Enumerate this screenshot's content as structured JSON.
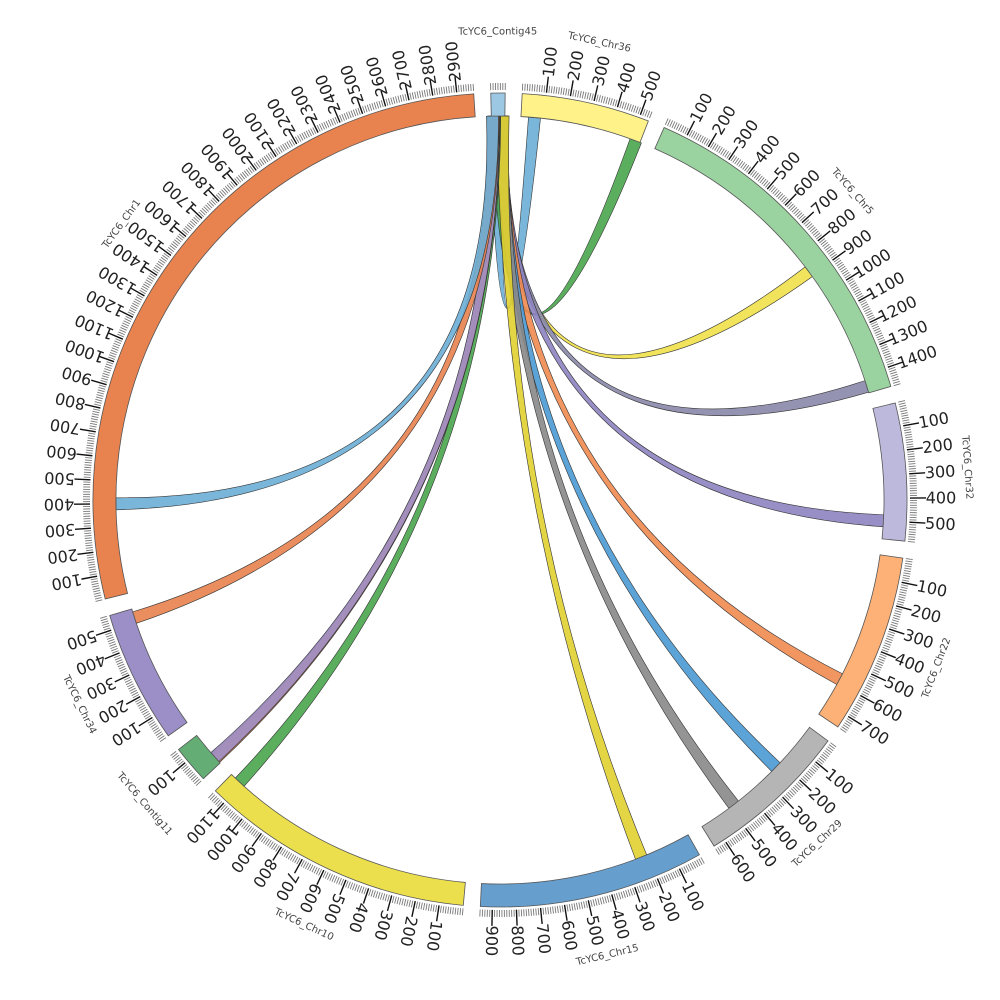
{
  "chart_data": {
    "type": "circos",
    "tick_interval": 100,
    "chromosomes": [
      {
        "name": "TcYC6_Contig45",
        "length": 60,
        "color": "#9dc8e3"
      },
      {
        "name": "TcYC6_Chr36",
        "length": 540,
        "color": "#fef288"
      },
      {
        "name": "TcYC6_Chr5",
        "length": 1480,
        "color": "#9bd3a0"
      },
      {
        "name": "TcYC6_Chr32",
        "length": 580,
        "color": "#bcb9dc"
      },
      {
        "name": "TcYC6_Chr22",
        "length": 760,
        "color": "#feb177"
      },
      {
        "name": "TcYC6_Chr29",
        "length": 650,
        "color": "#b5b5b5"
      },
      {
        "name": "TcYC6_Chr15",
        "length": 950,
        "color": "#669fce"
      },
      {
        "name": "TcYC6_Chr10",
        "length": 1160,
        "color": "#ebdf4e"
      },
      {
        "name": "TcYC6_Contig11",
        "length": 160,
        "color": "#64ad75"
      },
      {
        "name": "TcYC6_Chr34",
        "length": 560,
        "color": "#9c8ec6"
      },
      {
        "name": "TcYC6_Chr1",
        "length": 2970,
        "color": "#e8824f"
      }
    ],
    "links": [
      {
        "from": "TcYC6_Contig45",
        "from_pos": 20,
        "to": "TcYC6_Chr36",
        "to_pos": 60,
        "color": "#6baed6"
      },
      {
        "from": "TcYC6_Contig45",
        "from_pos": 30,
        "to": "TcYC6_Chr36",
        "to_pos": 520,
        "color": "#4aa54e"
      },
      {
        "from": "TcYC6_Contig45",
        "from_pos": 35,
        "to": "TcYC6_Chr5",
        "to_pos": 880,
        "color": "#f0e04a"
      },
      {
        "from": "TcYC6_Contig45",
        "from_pos": 40,
        "to": "TcYC6_Chr5",
        "to_pos": 1450,
        "color": "#8888aa"
      },
      {
        "from": "TcYC6_Contig45",
        "from_pos": 42,
        "to": "TcYC6_Chr32",
        "to_pos": 500,
        "color": "#8d83c0"
      },
      {
        "from": "TcYC6_Contig45",
        "from_pos": 45,
        "to": "TcYC6_Chr22",
        "to_pos": 580,
        "color": "#f08a50"
      },
      {
        "from": "TcYC6_Contig45",
        "from_pos": 48,
        "to": "TcYC6_Chr29",
        "to_pos": 230,
        "color": "#4a9ad4"
      },
      {
        "from": "TcYC6_Contig45",
        "from_pos": 50,
        "to": "TcYC6_Chr29",
        "to_pos": 480,
        "color": "#888888"
      },
      {
        "from": "TcYC6_Contig45",
        "from_pos": 52,
        "to": "TcYC6_Chr15",
        "to_pos": 230,
        "color": "#e0d030"
      },
      {
        "from": "TcYC6_Contig45",
        "from_pos": 15,
        "to": "TcYC6_Chr10",
        "to_pos": 1110,
        "color": "#4aa54e"
      },
      {
        "from": "TcYC6_Contig45",
        "from_pos": 12,
        "to": "TcYC6_Contig11",
        "to_pos": 30,
        "color": "#e8824f"
      },
      {
        "from": "TcYC6_Contig45",
        "from_pos": 10,
        "to": "TcYC6_Contig11",
        "to_pos": 35,
        "color": "#9c8ec6"
      },
      {
        "from": "TcYC6_Contig45",
        "from_pos": 8,
        "to": "TcYC6_Chr34",
        "to_pos": 520,
        "color": "#e8824f"
      },
      {
        "from": "TcYC6_Contig45",
        "from_pos": 5,
        "to": "TcYC6_Chr1",
        "to_pos": 400,
        "color": "#6baed6"
      }
    ]
  }
}
